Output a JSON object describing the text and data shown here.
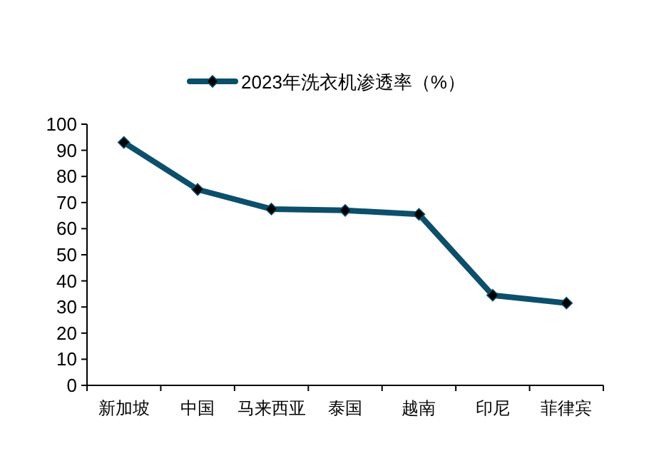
{
  "chart_data": {
    "type": "line",
    "categories": [
      "新加坡",
      "中国",
      "马来西亚",
      "泰国",
      "越南",
      "印尼",
      "菲律宾"
    ],
    "series": [
      {
        "name": "2023年洗衣机渗透率（%）",
        "color": "#0b4f6c",
        "values": [
          93,
          75,
          67.5,
          67,
          65.5,
          34.5,
          31.5
        ]
      }
    ],
    "ylim": [
      0,
      100
    ],
    "yticks": [
      0,
      10,
      20,
      30,
      40,
      50,
      60,
      70,
      80,
      90,
      100
    ],
    "grid": false,
    "legend": "top",
    "marker": "diamond",
    "line_style": "solid"
  }
}
